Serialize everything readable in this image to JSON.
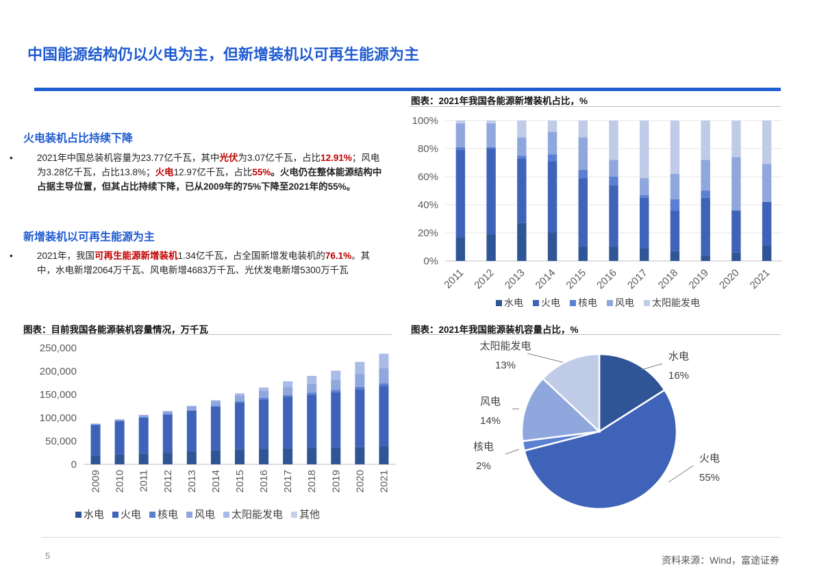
{
  "page": {
    "title": "中国能源结构仍以火电为主，但新增装机以可再生能源为主",
    "page_number": "5",
    "source": "资料来源：Wind，富途证券"
  },
  "section1": {
    "heading": "火电装机占比持续下降",
    "bullet": "•",
    "t1": "2021年中国总装机容量为23.77亿千瓦，其中",
    "t2": "光伏",
    "t3": "为3.07亿千瓦，占比",
    "t4": "12.91%",
    "t5": "；风电为3.28亿千瓦，占比13.8%；",
    "t6": "火电",
    "t7": "12.97亿千瓦，占比",
    "t8": "55%",
    "t9": "。火电仍在整体能源结构中占据主导位置，但其占比持续下降，已从2009年的75%下降至2021年的55%。"
  },
  "section2": {
    "heading": "新增装机以可再生能源为主",
    "bullet": "•",
    "t1": "2021年，我国",
    "t2": "可再生能源新增装机",
    "t3": "1.34亿千瓦，占全国新增发电装机的",
    "t4": "76.1%",
    "t5": "。其中，水电新增2064万千瓦、风电新增4683万千瓦、光伏发电新增5300万千瓦"
  },
  "captions": {
    "chart1": "图表：2021年我国各能源新增装机占比，%",
    "chart2": "图表：目前我国各能源装机容量情况，万千瓦",
    "chart3": "图表：2021年我国能源装机容量占比，%"
  },
  "chart_data": [
    {
      "type": "bar",
      "stacked": true,
      "percent": true,
      "title": "图表：2021年我国各能源新增装机占比，%",
      "categories": [
        "2011",
        "2012",
        "2013",
        "2014",
        "2015",
        "2016",
        "2017",
        "2018",
        "2019",
        "2020",
        "2021"
      ],
      "yticks": [
        "0%",
        "20%",
        "40%",
        "60%",
        "80%",
        "100%"
      ],
      "ylim": [
        0,
        100
      ],
      "legend": "bottom",
      "series": [
        {
          "name": "水电",
          "color": "#2f5597",
          "values": [
            17,
            19,
            27,
            20,
            10,
            10,
            9,
            7,
            4,
            6,
            11
          ]
        },
        {
          "name": "火电",
          "color": "#3e63b8",
          "values": [
            62,
            61,
            46,
            51,
            49,
            44,
            36,
            29,
            41,
            30,
            31
          ]
        },
        {
          "name": "核电",
          "color": "#5b7fd3",
          "values": [
            2,
            1,
            2,
            5,
            6,
            6,
            2,
            8,
            5,
            0,
            0
          ]
        },
        {
          "name": "风电",
          "color": "#8fa7dd",
          "values": [
            17,
            17,
            13,
            16,
            23,
            12,
            12,
            18,
            22,
            38,
            27
          ]
        },
        {
          "name": "太阳能发电",
          "color": "#c0cbe8",
          "values": [
            2,
            2,
            12,
            8,
            12,
            28,
            41,
            38,
            28,
            26,
            31
          ]
        }
      ]
    },
    {
      "type": "bar",
      "stacked": true,
      "title": "图表：目前我国各能源装机容量情况，万千瓦",
      "categories": [
        "2009",
        "2010",
        "2011",
        "2012",
        "2013",
        "2014",
        "2015",
        "2016",
        "2017",
        "2018",
        "2019",
        "2020",
        "2021"
      ],
      "yticks": [
        "0",
        "50,000",
        "100,000",
        "150,000",
        "200,000",
        "250,000"
      ],
      "ylim": [
        0,
        250000
      ],
      "legend": "bottom",
      "series": [
        {
          "name": "水电",
          "color": "#2f5597",
          "values": [
            19600,
            21600,
            23300,
            24900,
            28000,
            30500,
            31900,
            33200,
            34400,
            35200,
            35800,
            37000,
            39100
          ]
        },
        {
          "name": "火电",
          "color": "#3e63b8",
          "values": [
            65200,
            71000,
            76800,
            81900,
            87000,
            93200,
            100600,
            106100,
            111000,
            114400,
            119100,
            124500,
            129700
          ]
        },
        {
          "name": "核电",
          "color": "#5b7fd3",
          "values": [
            900,
            1100,
            1300,
            1300,
            1500,
            2000,
            2700,
            3400,
            3600,
            4500,
            4900,
            5000,
            5300
          ]
        },
        {
          "name": "风电",
          "color": "#8fa7dd",
          "values": [
            1800,
            3000,
            4600,
            6100,
            7700,
            9600,
            13100,
            14700,
            16400,
            18400,
            21000,
            28200,
            32800
          ]
        },
        {
          "name": "太阳能发电",
          "color": "#a9bbe6",
          "values": [
            0,
            0,
            200,
            300,
            1600,
            2500,
            4200,
            7700,
            13000,
            17400,
            20400,
            25300,
            30700
          ]
        },
        {
          "name": "其他",
          "color": "#c6d0ea",
          "values": [
            0,
            0,
            0,
            0,
            0,
            0,
            0,
            0,
            0,
            0,
            0,
            0,
            0
          ]
        }
      ]
    },
    {
      "type": "pie",
      "title": "图表：2021年我国能源装机容量占比，%",
      "slices": [
        {
          "name": "水电",
          "value": 16,
          "label": "16%",
          "color": "#2f5597"
        },
        {
          "name": "火电",
          "value": 55,
          "label": "55%",
          "color": "#3e63b8"
        },
        {
          "name": "核电",
          "value": 2,
          "label": "2%",
          "color": "#5b7fd3"
        },
        {
          "name": "风电",
          "value": 14,
          "label": "14%",
          "color": "#8fa7dd"
        },
        {
          "name": "太阳能发电",
          "value": 13,
          "label": "13%",
          "color": "#c0cbe8"
        }
      ]
    }
  ]
}
